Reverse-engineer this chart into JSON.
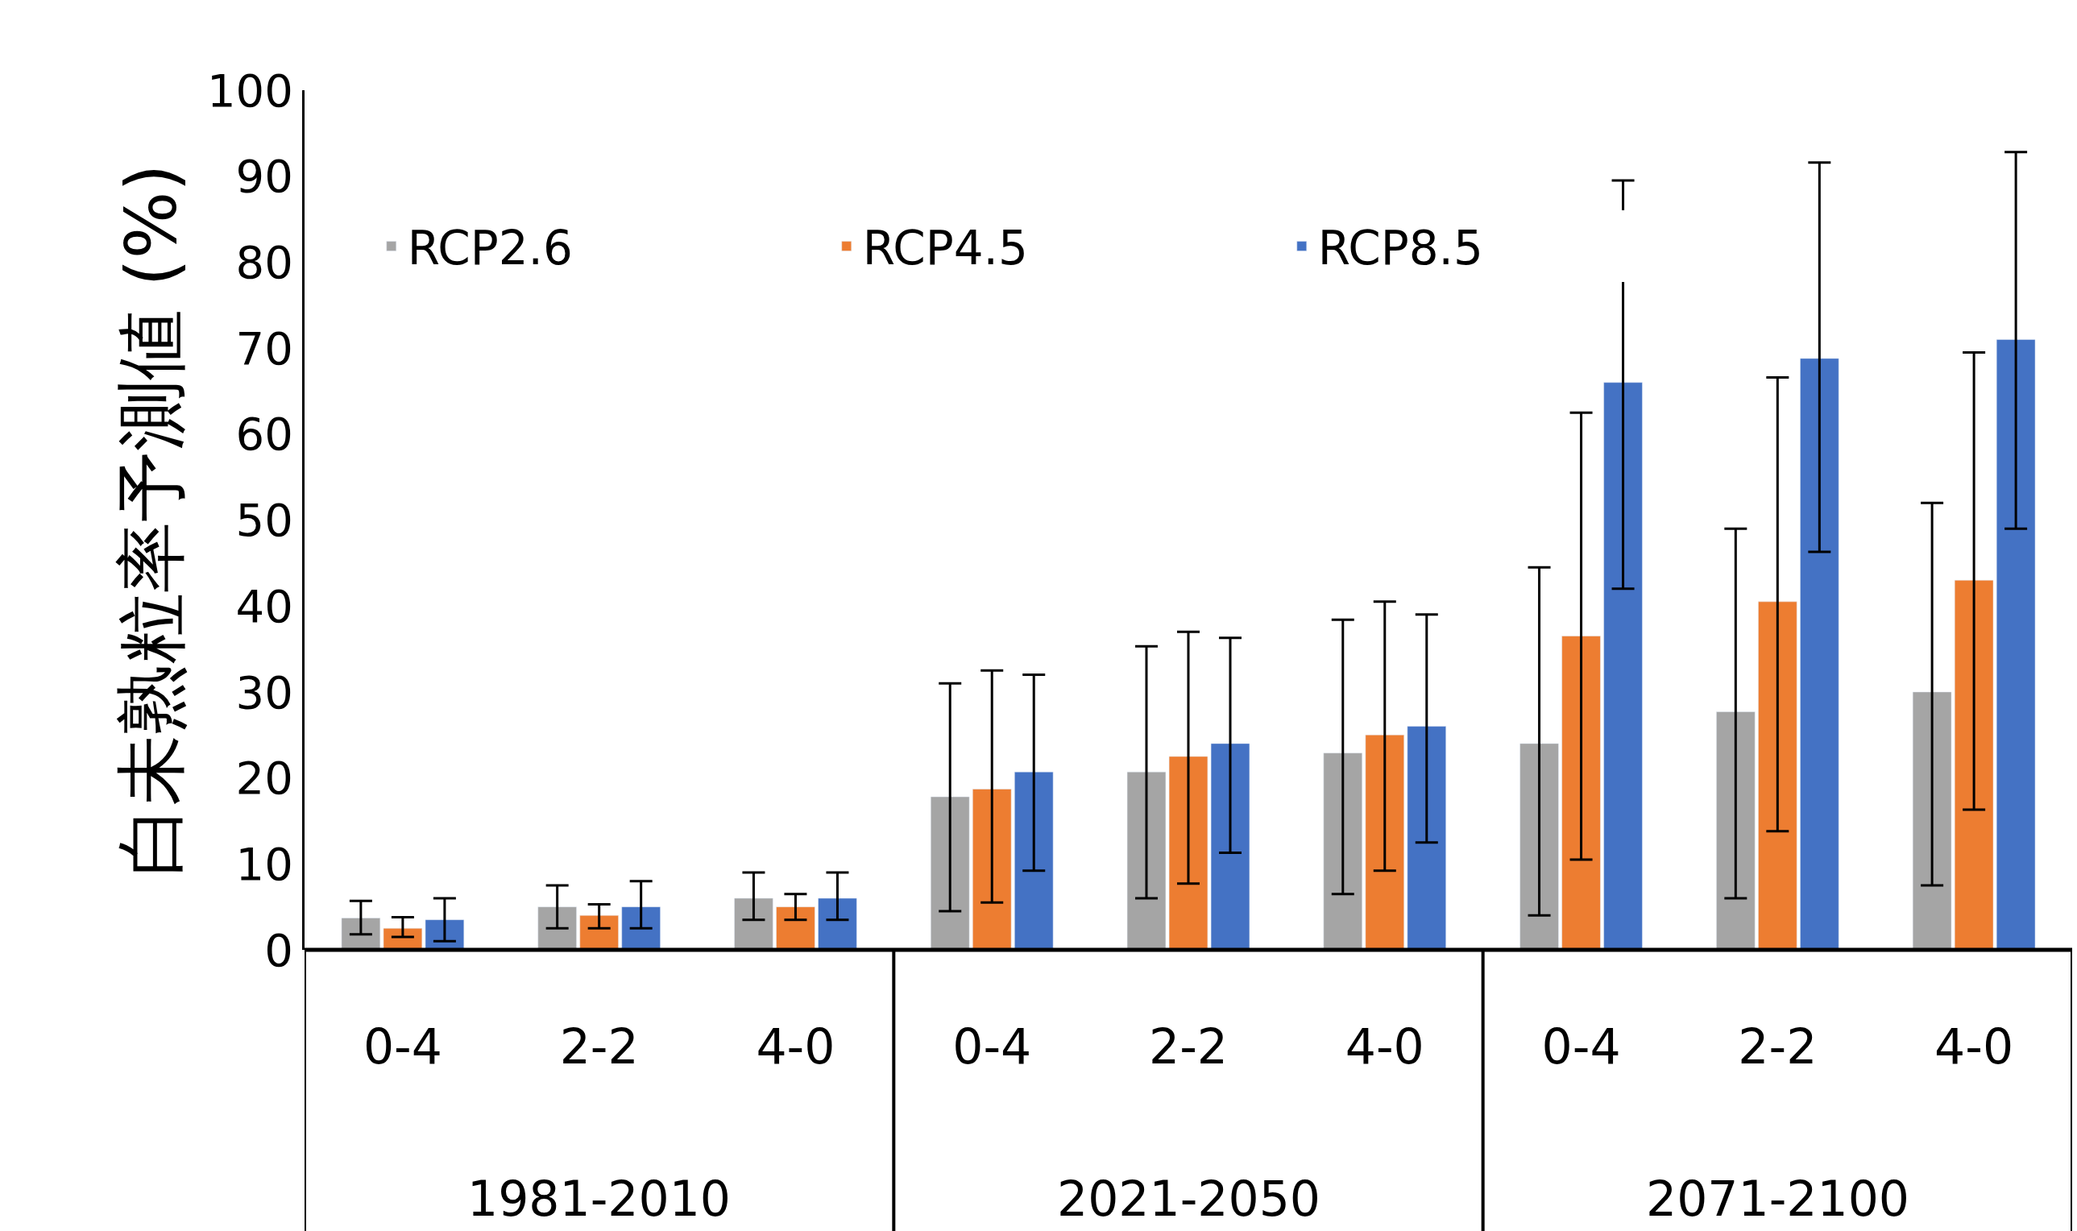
{
  "chart_data": {
    "type": "bar",
    "ylabel": "白未熟粒率予測値 (%)",
    "categories": [
      "0-4",
      "2-2",
      "4-0",
      "0-4",
      "2-2",
      "4-0",
      "0-4",
      "2-2",
      "4-0"
    ],
    "annotations": [
      "1981-2010",
      "2021-2050",
      "2071-2100"
    ],
    "series": [
      {
        "name": "RCP2.6",
        "color": "#a5a5a5",
        "values": [
          3.7,
          5,
          6,
          17.8,
          20.7,
          22.9,
          24,
          27.7,
          30
        ],
        "errors": [
          [
            1.8,
            5.7
          ],
          [
            2.5,
            7.5
          ],
          [
            3.5,
            9
          ],
          [
            4.5,
            31
          ],
          [
            6,
            35.3
          ],
          [
            6.5,
            38.4
          ],
          [
            4,
            44.5
          ],
          [
            6,
            49
          ],
          [
            7.5,
            52
          ]
        ]
      },
      {
        "name": "RCP4.5",
        "color": "#ed7d31",
        "values": [
          2.5,
          4,
          5,
          18.7,
          22.5,
          25,
          36.5,
          40.5,
          43
        ],
        "errors": [
          [
            1.5,
            3.8
          ],
          [
            2.5,
            5.3
          ],
          [
            3.5,
            6.5
          ],
          [
            5.5,
            32.5
          ],
          [
            7.7,
            37
          ],
          [
            9.2,
            40.5
          ],
          [
            10.5,
            62.5
          ],
          [
            13.8,
            66.6
          ],
          [
            16.3,
            69.5
          ]
        ]
      },
      {
        "name": "RCP8.5",
        "color": "#4472c4",
        "values": [
          3.5,
          5,
          6,
          20.7,
          24,
          26,
          66,
          68.8,
          71
        ],
        "errors": [
          [
            1,
            6
          ],
          [
            2.5,
            8
          ],
          [
            3.5,
            9
          ],
          [
            9.2,
            32
          ],
          [
            11.3,
            36.3
          ],
          [
            12.5,
            39
          ],
          [
            42,
            89.5
          ],
          [
            46.3,
            91.6
          ],
          [
            49,
            92.8
          ]
        ]
      }
    ],
    "ylim": [
      0,
      100
    ],
    "yticks": [
      0,
      10,
      20,
      30,
      40,
      50,
      60,
      70,
      80,
      90,
      100
    ],
    "legend": "top left"
  }
}
